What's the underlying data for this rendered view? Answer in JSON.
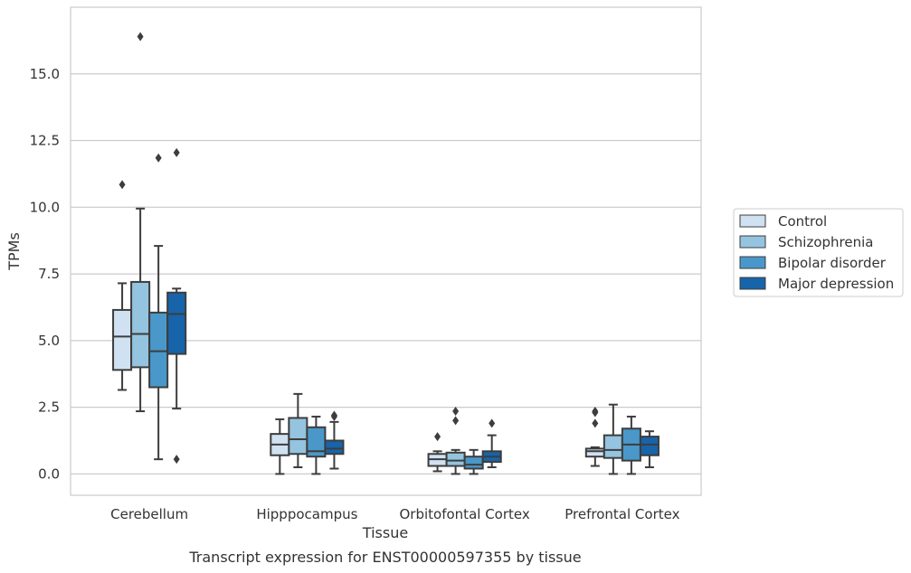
{
  "chart_data": {
    "type": "box",
    "title": "",
    "caption": "Transcript expression for ENST00000597355 by tissue",
    "xlabel": "Tissue",
    "ylabel": "TPMs",
    "ylim": [
      -0.8,
      17.5
    ],
    "yticks": [
      "0.0",
      "2.5",
      "5.0",
      "7.5",
      "10.0",
      "12.5",
      "15.0"
    ],
    "ytick_values": [
      0,
      2.5,
      5,
      7.5,
      10,
      12.5,
      15
    ],
    "grid": true,
    "legend_position": "right",
    "categories": [
      "Cerebellum",
      "Hipppocampus",
      "Orbitofontal Cortex",
      "Prefrontal Cortex"
    ],
    "series": [
      {
        "name": "Control",
        "color": "#d0e1f2",
        "boxes": [
          {
            "whisker_low": 3.15,
            "q1": 3.9,
            "median": 5.15,
            "q3": 6.15,
            "whisker_high": 7.15,
            "outliers": [
              10.85
            ]
          },
          {
            "whisker_low": 0.0,
            "q1": 0.7,
            "median": 1.1,
            "q3": 1.5,
            "whisker_high": 2.05,
            "outliers": []
          },
          {
            "whisker_low": 0.1,
            "q1": 0.3,
            "median": 0.55,
            "q3": 0.75,
            "whisker_high": 0.85,
            "outliers": [
              1.4
            ]
          },
          {
            "whisker_low": 0.3,
            "q1": 0.65,
            "median": 0.85,
            "q3": 0.95,
            "whisker_high": 1.0,
            "outliers": [
              1.9,
              2.3,
              2.35
            ]
          }
        ]
      },
      {
        "name": "Schizophrenia",
        "color": "#94c4df",
        "boxes": [
          {
            "whisker_low": 2.35,
            "q1": 4.0,
            "median": 5.25,
            "q3": 7.2,
            "whisker_high": 9.95,
            "outliers": [
              16.4
            ]
          },
          {
            "whisker_low": 0.25,
            "q1": 0.75,
            "median": 1.3,
            "q3": 2.1,
            "whisker_high": 3.0,
            "outliers": []
          },
          {
            "whisker_low": 0.0,
            "q1": 0.3,
            "median": 0.5,
            "q3": 0.8,
            "whisker_high": 0.9,
            "outliers": [
              2.0,
              2.35
            ]
          },
          {
            "whisker_low": 0.0,
            "q1": 0.6,
            "median": 0.9,
            "q3": 1.45,
            "whisker_high": 2.6,
            "outliers": []
          }
        ]
      },
      {
        "name": "Bipolar disorder",
        "color": "#4a98c9",
        "boxes": [
          {
            "whisker_low": 0.55,
            "q1": 3.25,
            "median": 4.6,
            "q3": 6.05,
            "whisker_high": 8.55,
            "outliers": [
              11.85
            ]
          },
          {
            "whisker_low": 0.0,
            "q1": 0.65,
            "median": 0.85,
            "q3": 1.75,
            "whisker_high": 2.15,
            "outliers": []
          },
          {
            "whisker_low": 0.0,
            "q1": 0.2,
            "median": 0.35,
            "q3": 0.65,
            "whisker_high": 0.9,
            "outliers": []
          },
          {
            "whisker_low": 0.0,
            "q1": 0.5,
            "median": 1.1,
            "q3": 1.7,
            "whisker_high": 2.15,
            "outliers": []
          }
        ]
      },
      {
        "name": "Major depression",
        "color": "#1764ab",
        "boxes": [
          {
            "whisker_low": 2.45,
            "q1": 4.5,
            "median": 6.0,
            "q3": 6.8,
            "whisker_high": 6.95,
            "outliers": [
              0.55,
              12.05
            ]
          },
          {
            "whisker_low": 0.2,
            "q1": 0.75,
            "median": 0.95,
            "q3": 1.25,
            "whisker_high": 1.95,
            "outliers": [
              2.15,
              2.2
            ]
          },
          {
            "whisker_low": 0.25,
            "q1": 0.45,
            "median": 0.65,
            "q3": 0.85,
            "whisker_high": 1.45,
            "outliers": [
              1.9
            ]
          },
          {
            "whisker_low": 0.25,
            "q1": 0.7,
            "median": 1.1,
            "q3": 1.4,
            "whisker_high": 1.6,
            "outliers": []
          }
        ]
      }
    ]
  }
}
